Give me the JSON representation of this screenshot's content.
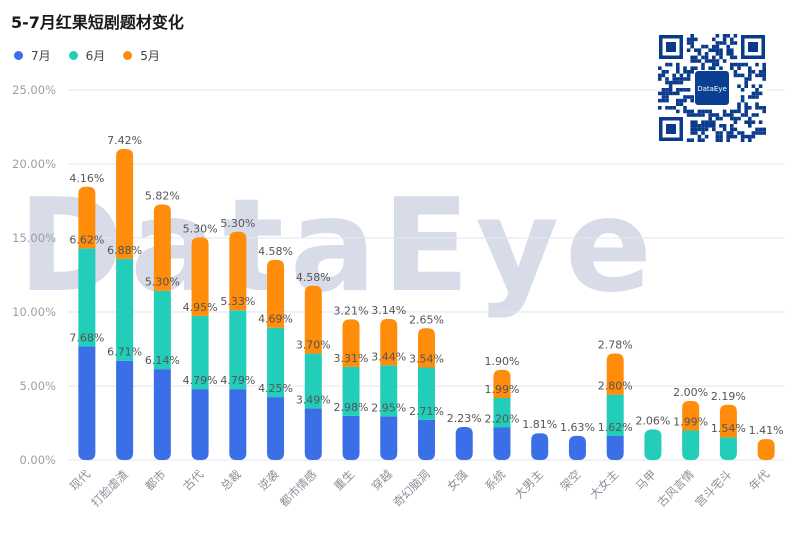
{
  "title": "5-7月红果短剧题材变化",
  "watermark": "DataEye",
  "qr_logo_text": "DataEye",
  "legend": [
    {
      "name": "7月",
      "color": "#3b6fe8"
    },
    {
      "name": "6月",
      "color": "#22cdb9"
    },
    {
      "name": "5月",
      "color": "#ff8c0a"
    }
  ],
  "chart_data": {
    "type": "bar",
    "stacked": true,
    "title": "5-7月红果短剧题材变化",
    "xlabel": "",
    "ylabel": "",
    "ylim": [
      0,
      25
    ],
    "yticks": [
      "0.00%",
      "5.00%",
      "10.00%",
      "15.00%",
      "20.00%",
      "25.00%"
    ],
    "grid": true,
    "legend_position": "top-left",
    "categories": [
      "现代",
      "打脸虐渣",
      "都市",
      "古代",
      "总裁",
      "逆袭",
      "都市情感",
      "重生",
      "穿越",
      "奇幻脑洞",
      "女强",
      "系统",
      "大男主",
      "架空",
      "大女主",
      "马甲",
      "古风言情",
      "宫斗宅斗",
      "年代"
    ],
    "series": [
      {
        "name": "7月",
        "color": "#3b6fe8",
        "values": [
          7.68,
          6.71,
          6.14,
          4.79,
          4.79,
          4.25,
          3.49,
          2.98,
          2.95,
          2.71,
          2.23,
          2.2,
          1.81,
          1.63,
          1.62,
          null,
          null,
          null,
          null
        ],
        "labels": [
          "7.68%",
          "6.71%",
          "6.14%",
          "4.79%",
          "4.79%",
          "4.25%",
          "3.49%",
          "2.98%",
          "2.95%",
          "2.71%",
          "2.23%",
          "2.20%",
          "1.81%",
          "1.63%",
          "1.62%",
          "",
          "",
          "",
          ""
        ]
      },
      {
        "name": "6月",
        "color": "#22cdb9",
        "values": [
          6.62,
          6.88,
          5.3,
          4.95,
          5.33,
          4.69,
          3.7,
          3.31,
          3.44,
          3.54,
          null,
          1.99,
          null,
          null,
          2.8,
          2.06,
          1.99,
          1.54,
          null
        ],
        "labels": [
          "6.62%",
          "6.88%",
          "5.30%",
          "4.95%",
          "5.33%",
          "4.69%",
          "3.70%",
          "3.31%",
          "3.44%",
          "3.54%",
          "",
          "1.99%",
          "",
          "",
          "2.80%",
          "2.06%",
          "1.99%",
          "1.54%",
          ""
        ]
      },
      {
        "name": "5月",
        "color": "#ff8c0a",
        "values": [
          4.16,
          7.42,
          5.82,
          5.3,
          5.3,
          4.58,
          4.58,
          3.21,
          3.14,
          2.65,
          null,
          1.9,
          null,
          null,
          2.78,
          null,
          2.0,
          2.19,
          1.41
        ],
        "labels": [
          "4.16%",
          "7.42%",
          "5.82%",
          "5.30%",
          "5.30%",
          "4.58%",
          "4.58%",
          "3.21%",
          "3.14%",
          "2.65%",
          "",
          "1.90%",
          "",
          "",
          "2.78%",
          "",
          "2.00%",
          "2.19%",
          "1.41%"
        ]
      }
    ]
  }
}
